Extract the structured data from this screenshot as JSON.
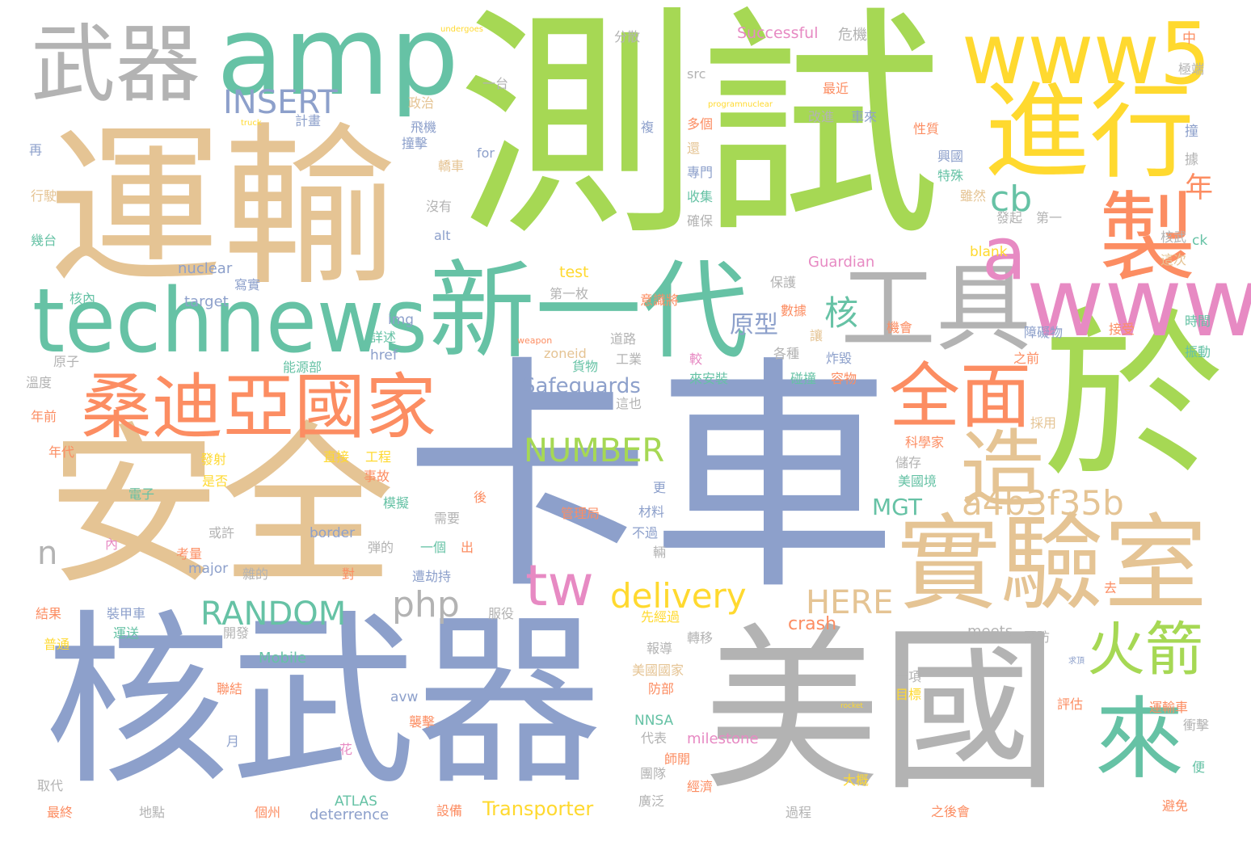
{
  "palette": {
    "green": "#a6d854",
    "tan": "#e5c494",
    "blue": "#8da0cb",
    "gray": "#b3b3b3",
    "teal": "#66c2a5",
    "orange": "#fc8d62",
    "yellow": "#ffd92f",
    "pink": "#e78ac3"
  },
  "words": [
    {
      "text": "卡車",
      "color": "blue"
    },
    {
      "text": "測試",
      "color": "green"
    },
    {
      "text": "運輸",
      "color": "tan"
    },
    {
      "text": "安全",
      "color": "tan"
    },
    {
      "text": "核武器",
      "color": "blue"
    },
    {
      "text": "美國",
      "color": "gray"
    },
    {
      "text": "於",
      "color": "green"
    },
    {
      "text": "進行",
      "color": "yellow"
    },
    {
      "text": "新一代",
      "color": "teal"
    },
    {
      "text": "實驗室",
      "color": "tan"
    },
    {
      "text": "桑迪亞國家",
      "color": "orange"
    },
    {
      "text": "工具",
      "color": "gray"
    },
    {
      "text": "武器",
      "color": "gray"
    },
    {
      "text": "amp",
      "color": "teal"
    },
    {
      "text": "technews",
      "color": "teal"
    },
    {
      "text": "www5",
      "color": "yellow"
    },
    {
      "text": "www",
      "color": "pink"
    },
    {
      "text": "製",
      "color": "orange"
    },
    {
      "text": "造",
      "color": "tan"
    },
    {
      "text": "全面",
      "color": "orange"
    },
    {
      "text": "來",
      "color": "teal"
    },
    {
      "text": "火箭",
      "color": "green"
    },
    {
      "text": "a",
      "color": "pink"
    },
    {
      "text": "tw",
      "color": "pink"
    },
    {
      "text": "INSERT",
      "color": "blue"
    },
    {
      "text": "cb",
      "color": "teal"
    },
    {
      "text": "年",
      "color": "orange"
    },
    {
      "text": "核",
      "color": "teal"
    },
    {
      "text": "原型",
      "color": "blue"
    },
    {
      "text": "NUMBER",
      "color": "green"
    },
    {
      "text": "a4b3f35b",
      "color": "tan"
    },
    {
      "text": "delivery",
      "color": "yellow"
    },
    {
      "text": "php",
      "color": "gray"
    },
    {
      "text": "RANDOM",
      "color": "teal"
    },
    {
      "text": "HERE",
      "color": "tan"
    },
    {
      "text": "n",
      "color": "gray"
    },
    {
      "text": "Safeguards",
      "color": "blue"
    },
    {
      "text": "MGT",
      "color": "teal"
    },
    {
      "text": "Transporter",
      "color": "yellow"
    },
    {
      "text": "crash",
      "color": "orange"
    },
    {
      "text": "Successful",
      "color": "pink"
    },
    {
      "text": "危機",
      "color": "gray"
    },
    {
      "text": "中",
      "color": "orange"
    },
    {
      "text": "極端",
      "color": "gray"
    },
    {
      "text": "分散",
      "color": "gray"
    },
    {
      "text": "src",
      "color": "gray"
    },
    {
      "text": "最近",
      "color": "orange"
    },
    {
      "text": "一台",
      "color": "gray"
    },
    {
      "text": "undergoes",
      "color": "yellow"
    },
    {
      "text": "programnuclear",
      "color": "yellow"
    },
    {
      "text": "truck",
      "color": "yellow"
    },
    {
      "text": "計畫",
      "color": "blue"
    },
    {
      "text": "政治",
      "color": "tan"
    },
    {
      "text": "改進",
      "color": "gray"
    },
    {
      "text": "車來",
      "color": "blue"
    },
    {
      "text": "飛機",
      "color": "blue"
    },
    {
      "text": "複",
      "color": "blue"
    },
    {
      "text": "多個",
      "color": "orange"
    },
    {
      "text": "性質",
      "color": "orange"
    },
    {
      "text": "撞擊",
      "color": "blue"
    },
    {
      "text": "for",
      "color": "blue"
    },
    {
      "text": "還",
      "color": "tan"
    },
    {
      "text": "興國",
      "color": "blue"
    },
    {
      "text": "撞",
      "color": "blue"
    },
    {
      "text": "再",
      "color": "blue"
    },
    {
      "text": "行駛",
      "color": "tan"
    },
    {
      "text": "幾台",
      "color": "teal"
    },
    {
      "text": "轎車",
      "color": "tan"
    },
    {
      "text": "專門",
      "color": "blue"
    },
    {
      "text": "特殊",
      "color": "teal"
    },
    {
      "text": "據",
      "color": "gray"
    },
    {
      "text": "收集",
      "color": "teal"
    },
    {
      "text": "雖然",
      "color": "tan"
    },
    {
      "text": "沒有",
      "color": "gray"
    },
    {
      "text": "確保",
      "color": "gray"
    },
    {
      "text": "發起",
      "color": "gray"
    },
    {
      "text": "第一",
      "color": "gray"
    },
    {
      "text": "ck",
      "color": "teal"
    },
    {
      "text": "alt",
      "color": "blue"
    },
    {
      "text": "blank",
      "color": "yellow"
    },
    {
      "text": "核武",
      "color": "gray"
    },
    {
      "text": "這次",
      "color": "tan"
    },
    {
      "text": "nuclear",
      "color": "blue"
    },
    {
      "text": "Guardian",
      "color": "pink"
    },
    {
      "text": "test",
      "color": "yellow"
    },
    {
      "text": "保護",
      "color": "gray"
    },
    {
      "text": "寫實",
      "color": "blue"
    },
    {
      "text": "核內",
      "color": "teal"
    },
    {
      "text": "target",
      "color": "blue"
    },
    {
      "text": "第一枚",
      "color": "gray"
    },
    {
      "text": "意識將",
      "color": "orange"
    },
    {
      "text": "img",
      "color": "blue"
    },
    {
      "text": "數據",
      "color": "orange"
    },
    {
      "text": "機會",
      "color": "orange"
    },
    {
      "text": "接受",
      "color": "orange"
    },
    {
      "text": "時間",
      "color": "teal"
    },
    {
      "text": "詳述",
      "color": "teal"
    },
    {
      "text": "weapon",
      "color": "orange"
    },
    {
      "text": "道路",
      "color": "gray"
    },
    {
      "text": "讓",
      "color": "tan"
    },
    {
      "text": "障礙物",
      "color": "blue"
    },
    {
      "text": "原子",
      "color": "gray"
    },
    {
      "text": "href",
      "color": "blue"
    },
    {
      "text": "zoneid",
      "color": "tan"
    },
    {
      "text": "工業",
      "color": "gray"
    },
    {
      "text": "較",
      "color": "pink"
    },
    {
      "text": "各種",
      "color": "gray"
    },
    {
      "text": "炸毀",
      "color": "blue"
    },
    {
      "text": "之前",
      "color": "orange"
    },
    {
      "text": "振動",
      "color": "teal"
    },
    {
      "text": "溫度",
      "color": "gray"
    },
    {
      "text": "能源部",
      "color": "teal"
    },
    {
      "text": "貨物",
      "color": "teal"
    },
    {
      "text": "碰撞",
      "color": "teal"
    },
    {
      "text": "容物",
      "color": "orange"
    },
    {
      "text": "來安裝",
      "color": "teal"
    },
    {
      "text": "這也",
      "color": "gray"
    },
    {
      "text": "年前",
      "color": "orange"
    },
    {
      "text": "採用",
      "color": "tan"
    },
    {
      "text": "科學家",
      "color": "orange"
    },
    {
      "text": "年代",
      "color": "orange"
    },
    {
      "text": "發射",
      "color": "yellow"
    },
    {
      "text": "直接",
      "color": "yellow"
    },
    {
      "text": "工程",
      "color": "yellow"
    },
    {
      "text": "儲存",
      "color": "gray"
    },
    {
      "text": "美國境",
      "color": "teal"
    },
    {
      "text": "是否",
      "color": "yellow"
    },
    {
      "text": "事故",
      "color": "orange"
    },
    {
      "text": "電子",
      "color": "teal"
    },
    {
      "text": "模擬",
      "color": "teal"
    },
    {
      "text": "更",
      "color": "blue"
    },
    {
      "text": "後",
      "color": "orange"
    },
    {
      "text": "需要",
      "color": "gray"
    },
    {
      "text": "材料",
      "color": "blue"
    },
    {
      "text": "管理局",
      "color": "orange"
    },
    {
      "text": "不過",
      "color": "blue"
    },
    {
      "text": "去",
      "color": "orange"
    },
    {
      "text": "或許",
      "color": "gray"
    },
    {
      "text": "border",
      "color": "blue"
    },
    {
      "text": "一個",
      "color": "teal"
    },
    {
      "text": "出",
      "color": "orange"
    },
    {
      "text": "內",
      "color": "pink"
    },
    {
      "text": "弾的",
      "color": "gray"
    },
    {
      "text": "輛",
      "color": "gray"
    },
    {
      "text": "考量",
      "color": "orange"
    },
    {
      "text": "major",
      "color": "blue"
    },
    {
      "text": "雜的",
      "color": "gray"
    },
    {
      "text": "對",
      "color": "orange"
    },
    {
      "text": "遭劫持",
      "color": "blue"
    },
    {
      "text": "結果",
      "color": "orange"
    },
    {
      "text": "裝甲車",
      "color": "blue"
    },
    {
      "text": "服役",
      "color": "gray"
    },
    {
      "text": "先經過",
      "color": "yellow"
    },
    {
      "text": "運送",
      "color": "teal"
    },
    {
      "text": "開發",
      "color": "gray"
    },
    {
      "text": "轉移",
      "color": "gray"
    },
    {
      "text": "meets",
      "color": "gray"
    },
    {
      "text": "國防",
      "color": "gray"
    },
    {
      "text": "普通",
      "color": "yellow"
    },
    {
      "text": "Mobile",
      "color": "teal"
    },
    {
      "text": "報導",
      "color": "gray"
    },
    {
      "text": "美國國家",
      "color": "tan"
    },
    {
      "text": "求頂",
      "color": "blue"
    },
    {
      "text": "聯結",
      "color": "orange"
    },
    {
      "text": "avw",
      "color": "blue"
    },
    {
      "text": "防部",
      "color": "orange"
    },
    {
      "text": "一項",
      "color": "gray"
    },
    {
      "text": "目標",
      "color": "yellow"
    },
    {
      "text": "rocket",
      "color": "yellow"
    },
    {
      "text": "NNSA",
      "color": "teal"
    },
    {
      "text": "評估",
      "color": "orange"
    },
    {
      "text": "運輸車",
      "color": "orange"
    },
    {
      "text": "衝擊",
      "color": "gray"
    },
    {
      "text": "襲擊",
      "color": "orange"
    },
    {
      "text": "代表",
      "color": "gray"
    },
    {
      "text": "milestone",
      "color": "pink"
    },
    {
      "text": "月",
      "color": "blue"
    },
    {
      "text": "花",
      "color": "pink"
    },
    {
      "text": "師開",
      "color": "orange"
    },
    {
      "text": "團隊",
      "color": "gray"
    },
    {
      "text": "便",
      "color": "teal"
    },
    {
      "text": "取代",
      "color": "gray"
    },
    {
      "text": "經濟",
      "color": "orange"
    },
    {
      "text": "大概",
      "color": "yellow"
    },
    {
      "text": "避免",
      "color": "orange"
    },
    {
      "text": "最終",
      "color": "orange"
    },
    {
      "text": "地點",
      "color": "gray"
    },
    {
      "text": "ATLAS",
      "color": "teal"
    },
    {
      "text": "個州",
      "color": "orange"
    },
    {
      "text": "deterrence",
      "color": "blue"
    },
    {
      "text": "設備",
      "color": "orange"
    },
    {
      "text": "廣泛",
      "color": "gray"
    },
    {
      "text": "過程",
      "color": "gray"
    },
    {
      "text": "之後會",
      "color": "orange"
    }
  ]
}
